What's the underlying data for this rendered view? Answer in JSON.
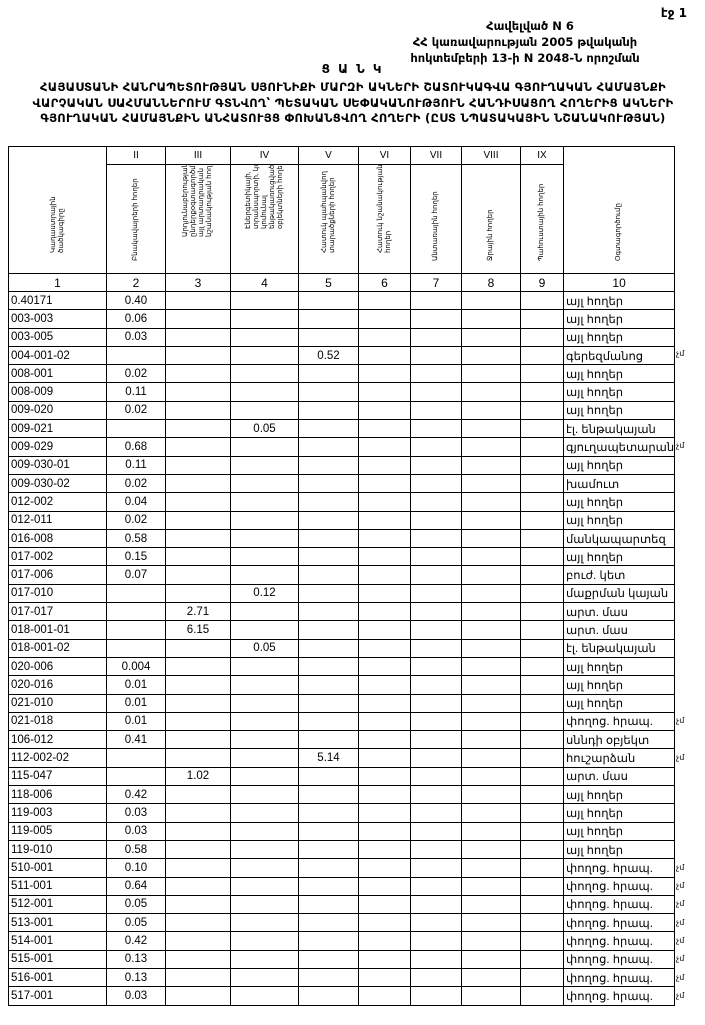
{
  "page_label": "էջ 1",
  "annex": [
    "Հավելված N 6",
    "ՀՀ կառավարության 2005 թվականի",
    "հոկտեմբերի 13-ի N 2048-Ն որոշման"
  ],
  "title": "Ց Ա Ն Կ",
  "subtitle": "ՀԱՅԱՍՏԱՆԻ ՀԱՆՐԱՊԵՏՈՒԹՅԱՆ ՍՅՈՒՆԻՔԻ ՄԱՐԶԻ ԱԿՆԵՐԻ ՇԱՏՈՒԿԱԳՎԱ ԳՅՈՒՂԱԿԱՆ ՀԱՄԱՅՆՔԻ ՎԱՐՉԱԿԱՆ ՍԱՀՄԱՆՆԵՐՈՒՄ ԳՏՆՎՈՂ՝ ՊԵՏԱԿԱՆ ՍԵՓԱԿԱՆՈՒԹՅՈՒՆ ՀԱՆԴԻՍԱՑՈՂ ՀՈՂԵՐԻՑ ԱԿՆԵՐԻ ԳՅՈՒՂԱԿԱՆ ՀԱՄԱՅՆՔԻՆ ԱՆՀԱՏՈՒՅՑ ՓՈԽԱՆՑՎՈՂ ՀՈՂԵՐԻ (ԸՍՏ ՆՊԱՏԱԿԱՅԻՆ ՆՇԱՆԱԿՈՒԹՅԱՆ)",
  "table": {
    "roman": [
      "II",
      "III",
      "IV",
      "V",
      "VI",
      "VII",
      "VIII",
      "IX"
    ],
    "headers": [
      "Կադաստրային ծածկագիրը",
      "Բնակավայրերի հողեր",
      "Արդյունաբերության, ընդերքօգտագործման և այլ արտադրական նշանակության հողեր",
      "Էներգետիկայի, տրանսպորտի, կապի, կոմունալ ենթակառուցվածքների օբյեկտների հողեր",
      "Հատուկ պահպանվող տարածքների հողեր",
      "Հատուկ նշանակության հողեր",
      "Անտառային հողեր",
      "Ջրային հողեր",
      "Պահուստային հողեր",
      "Օգտագործումը"
    ],
    "numbers": [
      "1",
      "2",
      "3",
      "4",
      "5",
      "6",
      "7",
      "8",
      "9",
      "10"
    ],
    "rows": [
      [
        "0.40171",
        "0.40",
        "",
        "",
        "",
        "",
        "",
        "",
        "",
        "այլ հողեր",
        ""
      ],
      [
        "003-003",
        "0.06",
        "",
        "",
        "",
        "",
        "",
        "",
        "",
        "այլ հողեր",
        ""
      ],
      [
        "003-005",
        "0.03",
        "",
        "",
        "",
        "",
        "",
        "",
        "",
        "այլ հողեր",
        ""
      ],
      [
        "004-001-02",
        "",
        "",
        "",
        "0.52",
        "",
        "",
        "",
        "",
        "գերեզմանոց",
        "չմ"
      ],
      [
        "008-001",
        "0.02",
        "",
        "",
        "",
        "",
        "",
        "",
        "",
        "այլ հողեր",
        ""
      ],
      [
        "008-009",
        "0.11",
        "",
        "",
        "",
        "",
        "",
        "",
        "",
        "այլ հողեր",
        ""
      ],
      [
        "009-020",
        "0.02",
        "",
        "",
        "",
        "",
        "",
        "",
        "",
        "այլ հողեր",
        ""
      ],
      [
        "009-021",
        "",
        "",
        "0.05",
        "",
        "",
        "",
        "",
        "",
        "էլ. ենթակայան",
        ""
      ],
      [
        "009-029",
        "0.68",
        "",
        "",
        "",
        "",
        "",
        "",
        "",
        "գյուղապետարան",
        "չմ"
      ],
      [
        "009-030-01",
        "0.11",
        "",
        "",
        "",
        "",
        "",
        "",
        "",
        "այլ հողեր",
        ""
      ],
      [
        "009-030-02",
        "0.02",
        "",
        "",
        "",
        "",
        "",
        "",
        "",
        "խամուտ",
        ""
      ],
      [
        "012-002",
        "0.04",
        "",
        "",
        "",
        "",
        "",
        "",
        "",
        "այլ հողեր",
        ""
      ],
      [
        "012-011",
        "0.02",
        "",
        "",
        "",
        "",
        "",
        "",
        "",
        "այլ հողեր",
        ""
      ],
      [
        "016-008",
        "0.58",
        "",
        "",
        "",
        "",
        "",
        "",
        "",
        "մանկապարտեզ",
        ""
      ],
      [
        "017-002",
        "0.15",
        "",
        "",
        "",
        "",
        "",
        "",
        "",
        "այլ հողեր",
        ""
      ],
      [
        "017-006",
        "0.07",
        "",
        "",
        "",
        "",
        "",
        "",
        "",
        "բուժ. կետ",
        ""
      ],
      [
        "017-010",
        "",
        "",
        "0.12",
        "",
        "",
        "",
        "",
        "",
        "մաքրման կայան",
        ""
      ],
      [
        "017-017",
        "",
        "2.71",
        "",
        "",
        "",
        "",
        "",
        "",
        "արտ. մաս",
        ""
      ],
      [
        "018-001-01",
        "",
        "6.15",
        "",
        "",
        "",
        "",
        "",
        "",
        "արտ. մաս",
        ""
      ],
      [
        "018-001-02",
        "",
        "",
        "0.05",
        "",
        "",
        "",
        "",
        "",
        "էլ. ենթակայան",
        ""
      ],
      [
        "020-006",
        "0.004",
        "",
        "",
        "",
        "",
        "",
        "",
        "",
        "այլ հողեր",
        ""
      ],
      [
        "020-016",
        "0.01",
        "",
        "",
        "",
        "",
        "",
        "",
        "",
        "այլ հողեր",
        ""
      ],
      [
        "021-010",
        "0.01",
        "",
        "",
        "",
        "",
        "",
        "",
        "",
        "այլ հողեր",
        ""
      ],
      [
        "021-018",
        "0.01",
        "",
        "",
        "",
        "",
        "",
        "",
        "",
        "փողոց. հրապ.",
        "չմ"
      ],
      [
        "106-012",
        "0.41",
        "",
        "",
        "",
        "",
        "",
        "",
        "",
        "սննդի օբյեկտ",
        ""
      ],
      [
        "112-002-02",
        "",
        "",
        "",
        "5.14",
        "",
        "",
        "",
        "",
        "հուշարձան",
        "չմ"
      ],
      [
        "115-047",
        "",
        "1.02",
        "",
        "",
        "",
        "",
        "",
        "",
        "արտ. մաս",
        ""
      ],
      [
        "118-006",
        "0.42",
        "",
        "",
        "",
        "",
        "",
        "",
        "",
        "այլ հողեր",
        ""
      ],
      [
        "119-003",
        "0.03",
        "",
        "",
        "",
        "",
        "",
        "",
        "",
        "այլ հողեր",
        ""
      ],
      [
        "119-005",
        "0.03",
        "",
        "",
        "",
        "",
        "",
        "",
        "",
        "այլ հողեր",
        ""
      ],
      [
        "119-010",
        "0.58",
        "",
        "",
        "",
        "",
        "",
        "",
        "",
        "այլ հողեր",
        ""
      ],
      [
        "510-001",
        "0.10",
        "",
        "",
        "",
        "",
        "",
        "",
        "",
        "փողոց. հրապ.",
        "չմ"
      ],
      [
        "511-001",
        "0.64",
        "",
        "",
        "",
        "",
        "",
        "",
        "",
        "փողոց. հրապ.",
        "չմ"
      ],
      [
        "512-001",
        "0.05",
        "",
        "",
        "",
        "",
        "",
        "",
        "",
        "փողոց. հրապ.",
        "չմ"
      ],
      [
        "513-001",
        "0.05",
        "",
        "",
        "",
        "",
        "",
        "",
        "",
        "փողոց. հրապ.",
        "չմ"
      ],
      [
        "514-001",
        "0.42",
        "",
        "",
        "",
        "",
        "",
        "",
        "",
        "փողոց. հրապ.",
        "չմ"
      ],
      [
        "515-001",
        "0.13",
        "",
        "",
        "",
        "",
        "",
        "",
        "",
        "փողոց. հրապ.",
        "չմ"
      ],
      [
        "516-001",
        "0.13",
        "",
        "",
        "",
        "",
        "",
        "",
        "",
        "փողոց. հրապ.",
        "չմ"
      ],
      [
        "517-001",
        "0.03",
        "",
        "",
        "",
        "",
        "",
        "",
        "",
        "փողոց. հրապ.",
        "չմ"
      ]
    ]
  }
}
